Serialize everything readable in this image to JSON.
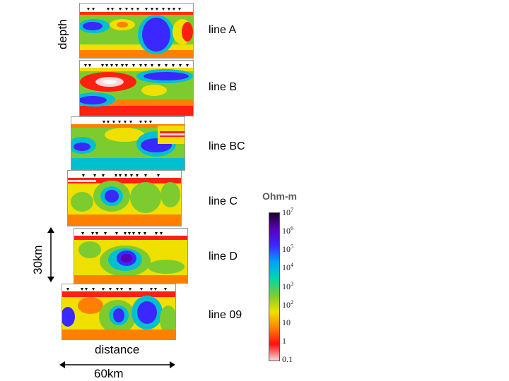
{
  "axis": {
    "depth_label": "depth",
    "depth_scale": "30km",
    "distance_label": "distance",
    "distance_scale": "60km"
  },
  "lines": [
    {
      "id": "A",
      "label": "line A"
    },
    {
      "id": "B",
      "label": "line B"
    },
    {
      "id": "BC",
      "label": "line BC"
    },
    {
      "id": "C",
      "label": "line C"
    },
    {
      "id": "D",
      "label": "line D"
    },
    {
      "id": "09",
      "label": "line 09"
    }
  ],
  "colorbar": {
    "title": "Ohm-m",
    "ticks": [
      {
        "base": "10",
        "exp": "7"
      },
      {
        "base": "10",
        "exp": "6"
      },
      {
        "base": "10",
        "exp": "5"
      },
      {
        "base": "10",
        "exp": "4"
      },
      {
        "base": "10",
        "exp": "3"
      },
      {
        "base": "10",
        "exp": "2"
      },
      {
        "base": "10",
        "exp": ""
      },
      {
        "base": "1",
        "exp": ""
      },
      {
        "base": "0.1",
        "exp": ""
      }
    ],
    "colors": [
      "#1a0030",
      "#5a00b8",
      "#3a28ff",
      "#00a0ff",
      "#00d6b0",
      "#7ccc30",
      "#f0e000",
      "#ff8000",
      "#ff1010",
      "#ffd6d6"
    ]
  }
}
